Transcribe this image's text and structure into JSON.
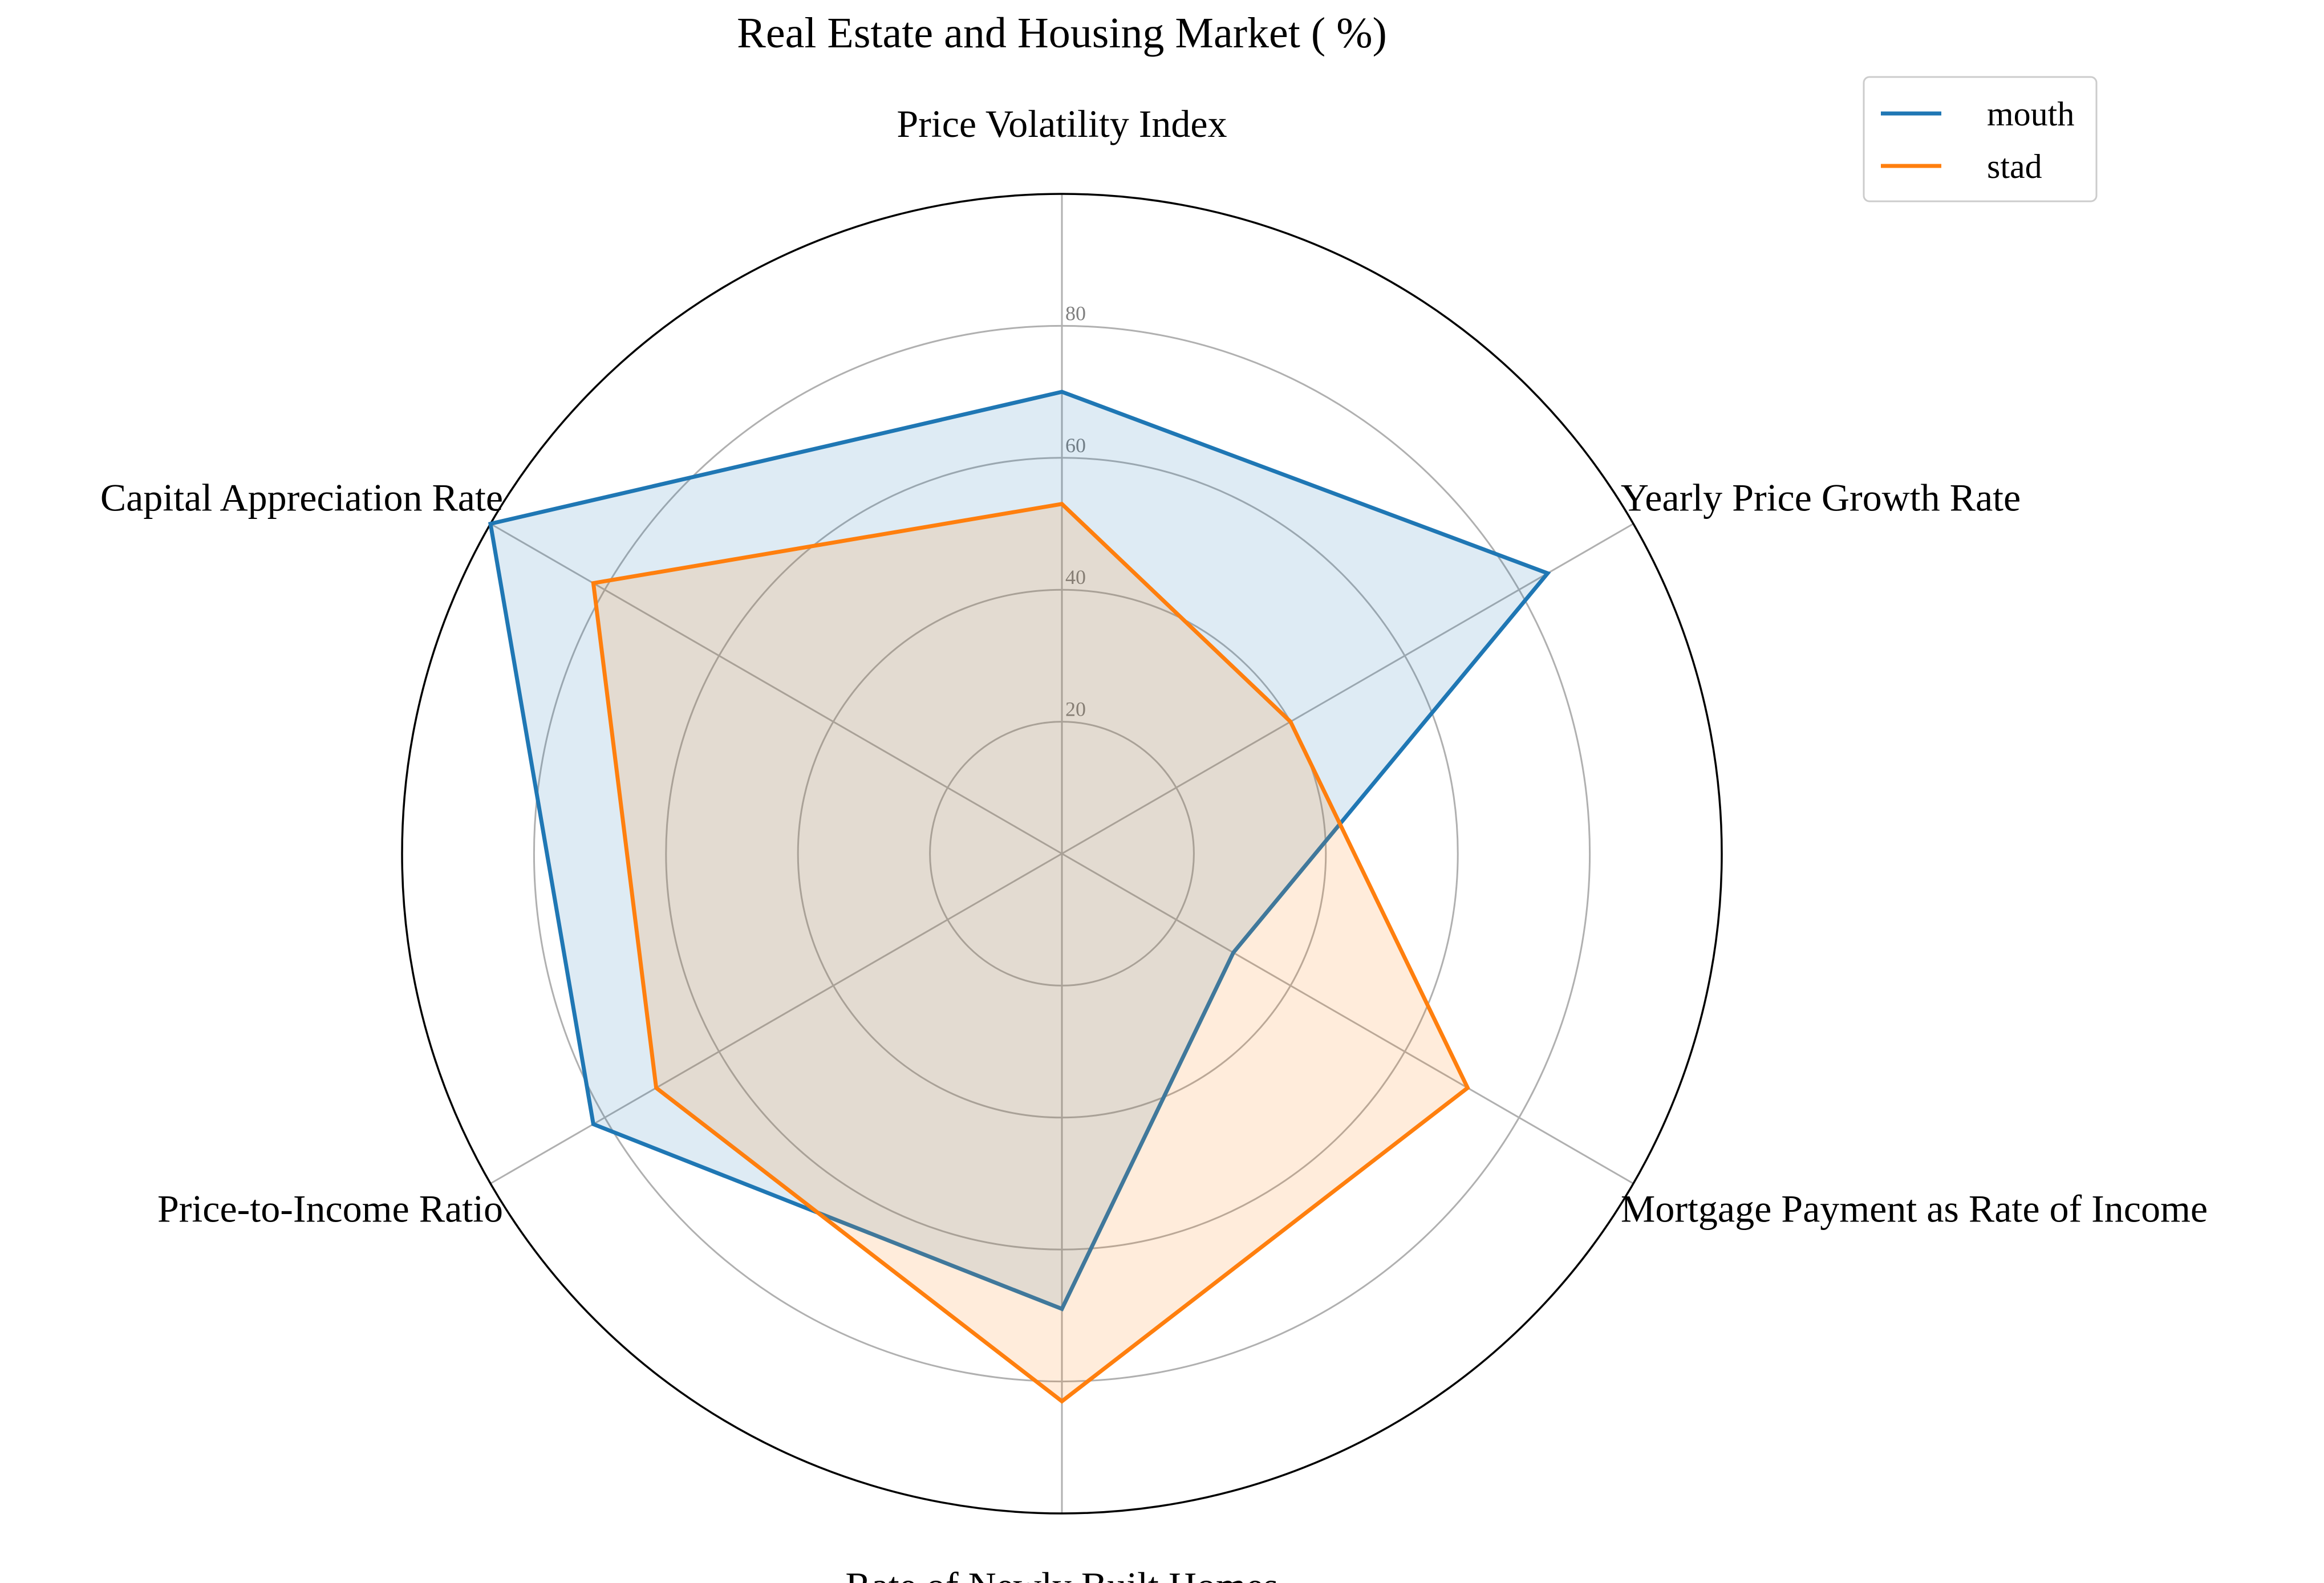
{
  "chart_data": {
    "type": "radar",
    "title": "Real Estate and Housing Market ( %)",
    "categories": [
      "Price Volatility Index",
      "Yearly Price Growth Rate",
      "Mortgage Payment as Rate of Income",
      "Rate of Newly Built Homes",
      "Price-to-Income Ratio",
      "Capital Appreciation Rate"
    ],
    "radial_ticks": [
      20,
      40,
      60,
      80
    ],
    "rlim": [
      0,
      100
    ],
    "series": [
      {
        "name": "mouth",
        "color": "#1f77b4",
        "values": [
          70,
          85,
          30,
          69,
          82,
          100
        ]
      },
      {
        "name": "stad",
        "color": "#ff7f0e",
        "values": [
          53,
          40,
          71,
          83,
          71,
          82
        ]
      }
    ],
    "legend_position": "top-right"
  }
}
